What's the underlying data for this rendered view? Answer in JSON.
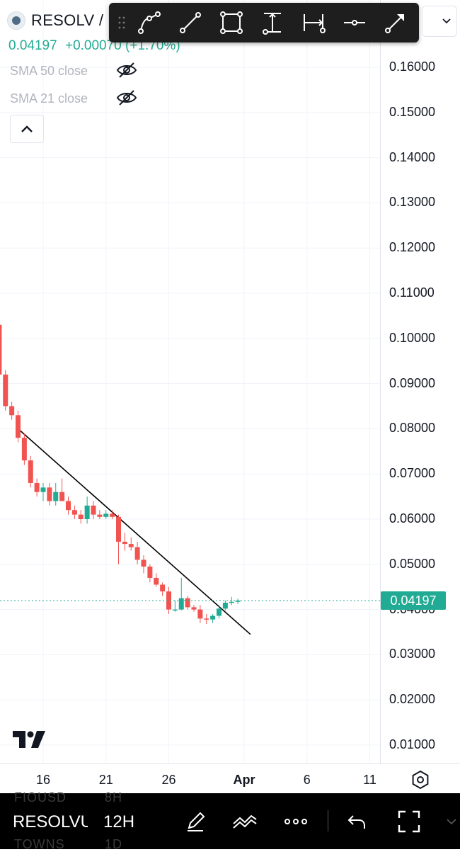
{
  "header": {
    "symbol": "RESOLV /",
    "price": "0.04197",
    "change": "+0.00070 (+1.70%)",
    "indicators": [
      {
        "label": "SMA 50 close"
      },
      {
        "label": "SMA 21 close"
      }
    ]
  },
  "toolbar": {
    "tools": [
      "path-tool",
      "trend-line-tool",
      "rectangle-tool",
      "vertical-measure-tool",
      "horizontal-measure-tool",
      "horizontal-ray-tool",
      "arrow-tool"
    ]
  },
  "price_axis": {
    "ticks": [
      "0.16000",
      "0.15000",
      "0.14000",
      "0.13000",
      "0.12000",
      "0.11000",
      "0.10000",
      "0.09000",
      "0.08000",
      "0.07000",
      "0.06000",
      "0.05000",
      "0.04000",
      "0.03000",
      "0.02000",
      "0.01000"
    ],
    "current_price": "0.04197",
    "current_price_color": "#22ab94"
  },
  "time_axis": {
    "ticks": [
      "16",
      "21",
      "26",
      "Apr",
      "6",
      "11"
    ]
  },
  "colors": {
    "up": "#22ab94",
    "down": "#f05350",
    "trendline": "#000000"
  },
  "chart_data": {
    "type": "candlestick",
    "interval": "12H",
    "ylim": [
      0.005,
      0.166
    ],
    "candles": [
      {
        "t": "Mar 12 12:00",
        "o": 0.103,
        "h": 0.103,
        "l": 0.091,
        "c": 0.092
      },
      {
        "t": "Mar 13 00:00",
        "o": 0.092,
        "h": 0.093,
        "l": 0.084,
        "c": 0.085
      },
      {
        "t": "Mar 13 12:00",
        "o": 0.085,
        "h": 0.086,
        "l": 0.082,
        "c": 0.083
      },
      {
        "t": "Mar 14 00:00",
        "o": 0.083,
        "h": 0.084,
        "l": 0.077,
        "c": 0.078
      },
      {
        "t": "Mar 14 12:00",
        "o": 0.078,
        "h": 0.079,
        "l": 0.072,
        "c": 0.073
      },
      {
        "t": "Mar 15 00:00",
        "o": 0.073,
        "h": 0.074,
        "l": 0.067,
        "c": 0.068
      },
      {
        "t": "Mar 15 12:00",
        "o": 0.068,
        "h": 0.069,
        "l": 0.065,
        "c": 0.066
      },
      {
        "t": "Mar 16 00:00",
        "o": 0.066,
        "h": 0.068,
        "l": 0.064,
        "c": 0.067
      },
      {
        "t": "Mar 16 12:00",
        "o": 0.067,
        "h": 0.068,
        "l": 0.063,
        "c": 0.064
      },
      {
        "t": "Mar 17 00:00",
        "o": 0.064,
        "h": 0.068,
        "l": 0.063,
        "c": 0.066
      },
      {
        "t": "Mar 17 12:00",
        "o": 0.066,
        "h": 0.069,
        "l": 0.064,
        "c": 0.064
      },
      {
        "t": "Mar 18 00:00",
        "o": 0.064,
        "h": 0.065,
        "l": 0.061,
        "c": 0.062
      },
      {
        "t": "Mar 18 12:00",
        "o": 0.062,
        "h": 0.063,
        "l": 0.06,
        "c": 0.061
      },
      {
        "t": "Mar 19 00:00",
        "o": 0.061,
        "h": 0.062,
        "l": 0.059,
        "c": 0.06
      },
      {
        "t": "Mar 19 12:00",
        "o": 0.06,
        "h": 0.065,
        "l": 0.059,
        "c": 0.063
      },
      {
        "t": "Mar 20 00:00",
        "o": 0.063,
        "h": 0.064,
        "l": 0.06,
        "c": 0.061
      },
      {
        "t": "Mar 20 12:00",
        "o": 0.061,
        "h": 0.062,
        "l": 0.06,
        "c": 0.0605
      },
      {
        "t": "Mar 21 00:00",
        "o": 0.0605,
        "h": 0.062,
        "l": 0.06,
        "c": 0.0612
      },
      {
        "t": "Mar 21 12:00",
        "o": 0.0612,
        "h": 0.062,
        "l": 0.06,
        "c": 0.0605
      },
      {
        "t": "Mar 22 00:00",
        "o": 0.0605,
        "h": 0.061,
        "l": 0.05,
        "c": 0.055
      },
      {
        "t": "Mar 22 12:00",
        "o": 0.055,
        "h": 0.057,
        "l": 0.053,
        "c": 0.0545
      },
      {
        "t": "Mar 23 00:00",
        "o": 0.0545,
        "h": 0.056,
        "l": 0.053,
        "c": 0.0538
      },
      {
        "t": "Mar 23 12:00",
        "o": 0.0538,
        "h": 0.055,
        "l": 0.05,
        "c": 0.051
      },
      {
        "t": "Mar 24 00:00",
        "o": 0.051,
        "h": 0.052,
        "l": 0.048,
        "c": 0.0495
      },
      {
        "t": "Mar 24 12:00",
        "o": 0.0495,
        "h": 0.05,
        "l": 0.046,
        "c": 0.047
      },
      {
        "t": "Mar 25 00:00",
        "o": 0.047,
        "h": 0.048,
        "l": 0.045,
        "c": 0.0455
      },
      {
        "t": "Mar 25 12:00",
        "o": 0.0455,
        "h": 0.046,
        "l": 0.043,
        "c": 0.044
      },
      {
        "t": "Mar 26 00:00",
        "o": 0.044,
        "h": 0.045,
        "l": 0.039,
        "c": 0.04
      },
      {
        "t": "Mar 26 12:00",
        "o": 0.04,
        "h": 0.042,
        "l": 0.0395,
        "c": 0.04
      },
      {
        "t": "Mar 27 00:00",
        "o": 0.04,
        "h": 0.047,
        "l": 0.0398,
        "c": 0.0425
      },
      {
        "t": "Mar 27 12:00",
        "o": 0.0425,
        "h": 0.043,
        "l": 0.04,
        "c": 0.0405
      },
      {
        "t": "Mar 28 00:00",
        "o": 0.0405,
        "h": 0.041,
        "l": 0.0395,
        "c": 0.04
      },
      {
        "t": "Mar 28 12:00",
        "o": 0.04,
        "h": 0.041,
        "l": 0.037,
        "c": 0.038
      },
      {
        "t": "Mar 29 00:00",
        "o": 0.038,
        "h": 0.039,
        "l": 0.0368,
        "c": 0.0378
      },
      {
        "t": "Mar 29 12:00",
        "o": 0.0378,
        "h": 0.039,
        "l": 0.037,
        "c": 0.0386
      },
      {
        "t": "Mar 30 00:00",
        "o": 0.0386,
        "h": 0.041,
        "l": 0.038,
        "c": 0.0402
      },
      {
        "t": "Mar 30 12:00",
        "o": 0.0402,
        "h": 0.042,
        "l": 0.0398,
        "c": 0.0415
      },
      {
        "t": "Mar 31 00:00",
        "o": 0.0415,
        "h": 0.0428,
        "l": 0.041,
        "c": 0.0417
      },
      {
        "t": "Mar 31 12:00",
        "o": 0.0417,
        "h": 0.0424,
        "l": 0.0412,
        "c": 0.04197
      }
    ],
    "trendline": {
      "start": {
        "t": "Mar 14 00:00",
        "price": 0.08
      },
      "end": {
        "t": "Apr 1 12:00",
        "price": 0.0345
      }
    }
  },
  "bottom_bar": {
    "ghost_top_symbol": "FIOUSD",
    "ghost_top_interval": "8H",
    "symbol": "RESOLVU",
    "interval": "12H",
    "ghost_bottom_symbol": "TOWNS",
    "ghost_bottom_interval": "1D"
  }
}
